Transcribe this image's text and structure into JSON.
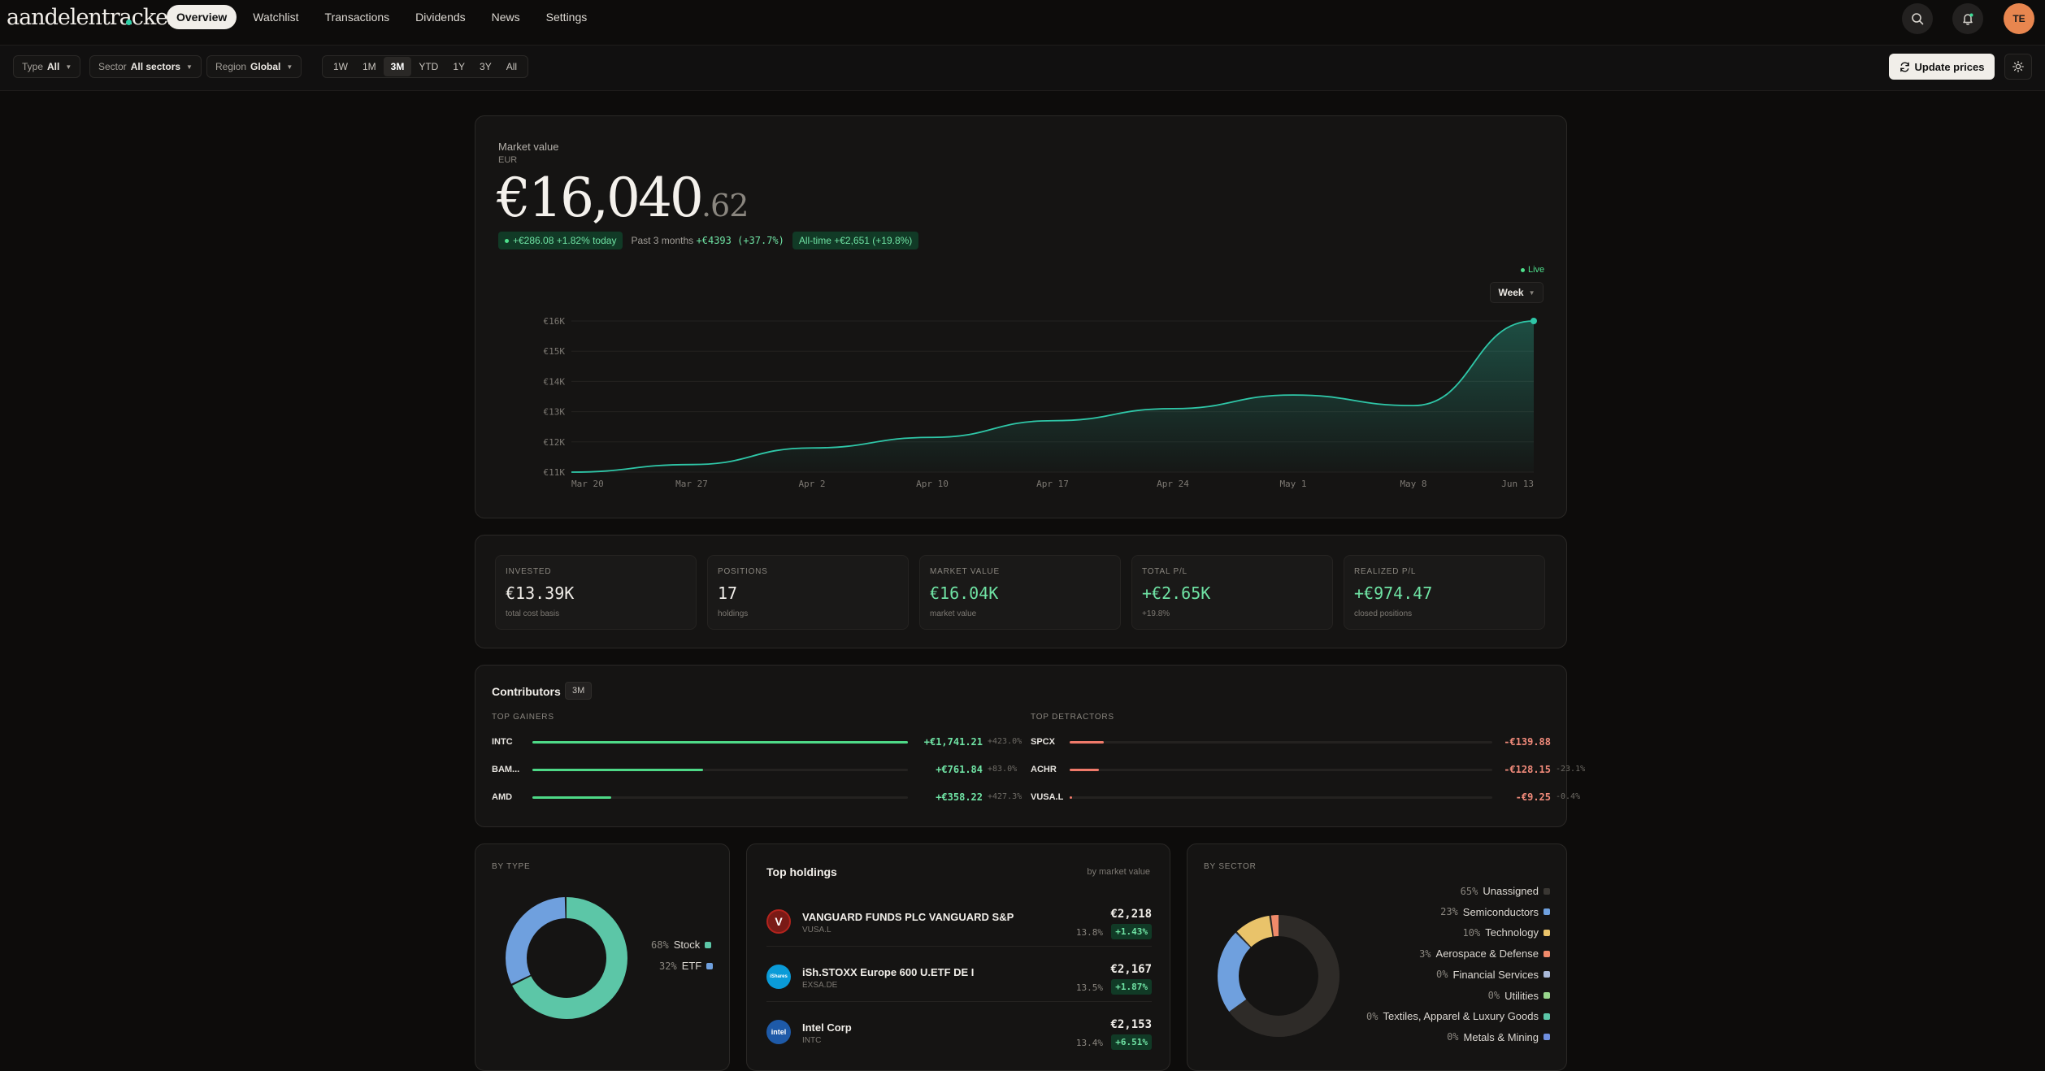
{
  "app": {
    "name": "aandelentracker"
  },
  "nav": {
    "items": [
      "Overview",
      "Watchlist",
      "Transactions",
      "Dividends",
      "News",
      "Settings"
    ],
    "active": "Overview"
  },
  "user": {
    "initials": "TE"
  },
  "filters": {
    "type": {
      "label": "Type",
      "value": "All"
    },
    "sector": {
      "label": "Sector",
      "value": "All sectors"
    },
    "region": {
      "label": "Region",
      "value": "Global"
    },
    "ranges": [
      "1W",
      "1M",
      "3M",
      "YTD",
      "1Y",
      "3Y",
      "All"
    ],
    "active_range": "3M"
  },
  "actions": {
    "update_prices": "Update prices"
  },
  "market_value": {
    "title": "Market value",
    "currency": "EUR",
    "value_main": "€16,040",
    "value_cents": ".62",
    "today": "+€286.08 +1.82% today",
    "period_label": "Past 3 months",
    "period_change": "+€4393 (+37.7%)",
    "alltime": "All-time +€2,651 (+19.8%)",
    "live": "Live",
    "granularity": "Week"
  },
  "chart_data": {
    "type": "area",
    "x": [
      "Mar 20",
      "Mar 27",
      "Apr 2",
      "Apr 10",
      "Apr 17",
      "Apr 24",
      "May 1",
      "May 8",
      "Jun 13"
    ],
    "y_ticks": [
      "€16K",
      "€15K",
      "€14K",
      "€13K",
      "€12K",
      "€11K"
    ],
    "ylim": [
      11000,
      16000
    ],
    "series": [
      {
        "values": [
          11000,
          11250,
          11800,
          12150,
          12700,
          13100,
          13550,
          13200,
          16000
        ]
      }
    ],
    "colors": {
      "line": "#2fc7a8",
      "area": "#1c3a33",
      "grid": "#242220"
    }
  },
  "stats": [
    {
      "label": "INVESTED",
      "value": "€13.39K",
      "sub": "total cost basis",
      "tone": "plain"
    },
    {
      "label": "POSITIONS",
      "value": "17",
      "sub": "holdings",
      "tone": "plain"
    },
    {
      "label": "MARKET VALUE",
      "value": "€16.04K",
      "sub": "market value",
      "tone": "green"
    },
    {
      "label": "TOTAL P/L",
      "value": "+€2.65K",
      "sub": "+19.8%",
      "tone": "green"
    },
    {
      "label": "REALIZED P/L",
      "value": "+€974.47",
      "sub": "closed positions",
      "tone": "green"
    }
  ],
  "contributors": {
    "title": "Contributors",
    "period": "3M",
    "gainers_label": "TOP GAINERS",
    "detractors_label": "TOP DETRACTORS",
    "gainers": [
      {
        "ticker": "INTC",
        "amount": "+€1,741.21",
        "pct": "+423.0%",
        "share": 1.0
      },
      {
        "ticker": "BAM...",
        "amount": "+€761.84",
        "pct": "+83.0%",
        "share": 0.455
      },
      {
        "ticker": "AMD",
        "amount": "+€358.22",
        "pct": "+427.3%",
        "share": 0.21
      }
    ],
    "detractors": [
      {
        "ticker": "SPCX",
        "amount": "-€139.88",
        "pct": "",
        "share": 0.08
      },
      {
        "ticker": "ACHR",
        "amount": "-€128.15",
        "pct": "-23.1%",
        "share": 0.07
      },
      {
        "ticker": "VUSA.L",
        "amount": "-€9.25",
        "pct": "-0.4%",
        "share": 0.005
      }
    ]
  },
  "by_type": {
    "label": "BY TYPE",
    "items": [
      {
        "name": "Stock",
        "pct": "68%",
        "share": 0.68,
        "color": "#5cc6a7"
      },
      {
        "name": "ETF",
        "pct": "32%",
        "share": 0.32,
        "color": "#6fa0de"
      }
    ]
  },
  "top_holdings": {
    "title": "Top holdings",
    "sub": "by market value",
    "items": [
      {
        "name": "VANGUARD FUNDS PLC VANGUARD S&P",
        "ticker": "VUSA.L",
        "value": "€2,218",
        "weight": "13.8%",
        "change": "+1.43%",
        "logo": "V",
        "logo_color": "#b3231d"
      },
      {
        "name": "iSh.STOXX Europe 600 U.ETF DE I",
        "ticker": "EXSA.DE",
        "value": "€2,167",
        "weight": "13.5%",
        "change": "+1.87%",
        "logo": "iShares",
        "logo_color": "#0a9bd8"
      },
      {
        "name": "Intel Corp",
        "ticker": "INTC",
        "value": "€2,153",
        "weight": "13.4%",
        "change": "+6.51%",
        "logo": "intel",
        "logo_color": "#1e5aa8"
      }
    ]
  },
  "by_sector": {
    "label": "BY SECTOR",
    "items": [
      {
        "name": "Unassigned",
        "pct": "65%",
        "share": 0.65,
        "color": "#2e2b28"
      },
      {
        "name": "Semiconductors",
        "pct": "23%",
        "share": 0.23,
        "color": "#6fa0de"
      },
      {
        "name": "Technology",
        "pct": "10%",
        "share": 0.1,
        "color": "#e9c36a"
      },
      {
        "name": "Aerospace & Defense",
        "pct": "3%",
        "share": 0.03,
        "color": "#ef8a6a"
      },
      {
        "name": "Financial Services",
        "pct": "0%",
        "share": 0.0,
        "color": "#a9b9d8"
      },
      {
        "name": "Utilities",
        "pct": "0%",
        "share": 0.0,
        "color": "#98d68c"
      },
      {
        "name": "Textiles, Apparel & Luxury Goods",
        "pct": "0%",
        "share": 0.0,
        "color": "#5cc6a7"
      },
      {
        "name": "Metals & Mining",
        "pct": "0%",
        "share": 0.0,
        "color": "#6f8fe0"
      }
    ]
  }
}
